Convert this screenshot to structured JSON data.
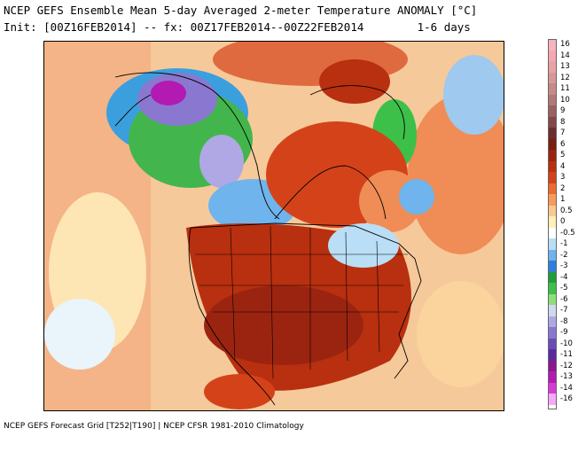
{
  "header": {
    "title": "NCEP GEFS Ensemble Mean 5-day Averaged 2-meter Temperature ANOMALY [°C]",
    "subtitle": "Init: [00Z16FEB2014] -- fx: 00Z17FEB2014--00Z22FEB2014        1-6 days"
  },
  "footer": {
    "text": "NCEP GEFS Forecast Grid [T252|T190] | NCEP CFSR 1981-2010 Climatology"
  },
  "legend": {
    "items": [
      {
        "label": "16",
        "color": "#f7b3c0"
      },
      {
        "label": "14",
        "color": "#f6a8b2"
      },
      {
        "label": "13",
        "color": "#e8a3a6"
      },
      {
        "label": "12",
        "color": "#d79898"
      },
      {
        "label": "11",
        "color": "#c68a89"
      },
      {
        "label": "10",
        "color": "#b27777"
      },
      {
        "label": "9",
        "color": "#9b6060"
      },
      {
        "label": "8",
        "color": "#844848"
      },
      {
        "label": "7",
        "color": "#6c2e2e"
      },
      {
        "label": "6",
        "color": "#7a1d12"
      },
      {
        "label": "5",
        "color": "#9b2410"
      },
      {
        "label": "4",
        "color": "#b8300f"
      },
      {
        "label": "3",
        "color": "#d4421a"
      },
      {
        "label": "2",
        "color": "#ec6a32"
      },
      {
        "label": "1",
        "color": "#f89a5a"
      },
      {
        "label": "0.5",
        "color": "#fbc98e"
      },
      {
        "label": "0",
        "color": "#fdf0b8"
      },
      {
        "label": "-0.5",
        "color": "#ffffff"
      },
      {
        "label": "-1",
        "color": "#b9def6"
      },
      {
        "label": "-2",
        "color": "#6fb4ec"
      },
      {
        "label": "-3",
        "color": "#2f7fdc"
      },
      {
        "label": "-4",
        "color": "#1e9e3c"
      },
      {
        "label": "-5",
        "color": "#3cc04a"
      },
      {
        "label": "-6",
        "color": "#8be07c"
      },
      {
        "label": "-7",
        "color": "#cfd9f0"
      },
      {
        "label": "-8",
        "color": "#b0a8e4"
      },
      {
        "label": "-9",
        "color": "#8a78d0"
      },
      {
        "label": "-10",
        "color": "#6a4cb8"
      },
      {
        "label": "-11",
        "color": "#5a2a9c"
      },
      {
        "label": "-12",
        "color": "#8a1a8e"
      },
      {
        "label": "-13",
        "color": "#b21ab2"
      },
      {
        "label": "-14",
        "color": "#d83ad8"
      },
      {
        "label": "-16",
        "color": "#f7a8f7"
      }
    ]
  }
}
